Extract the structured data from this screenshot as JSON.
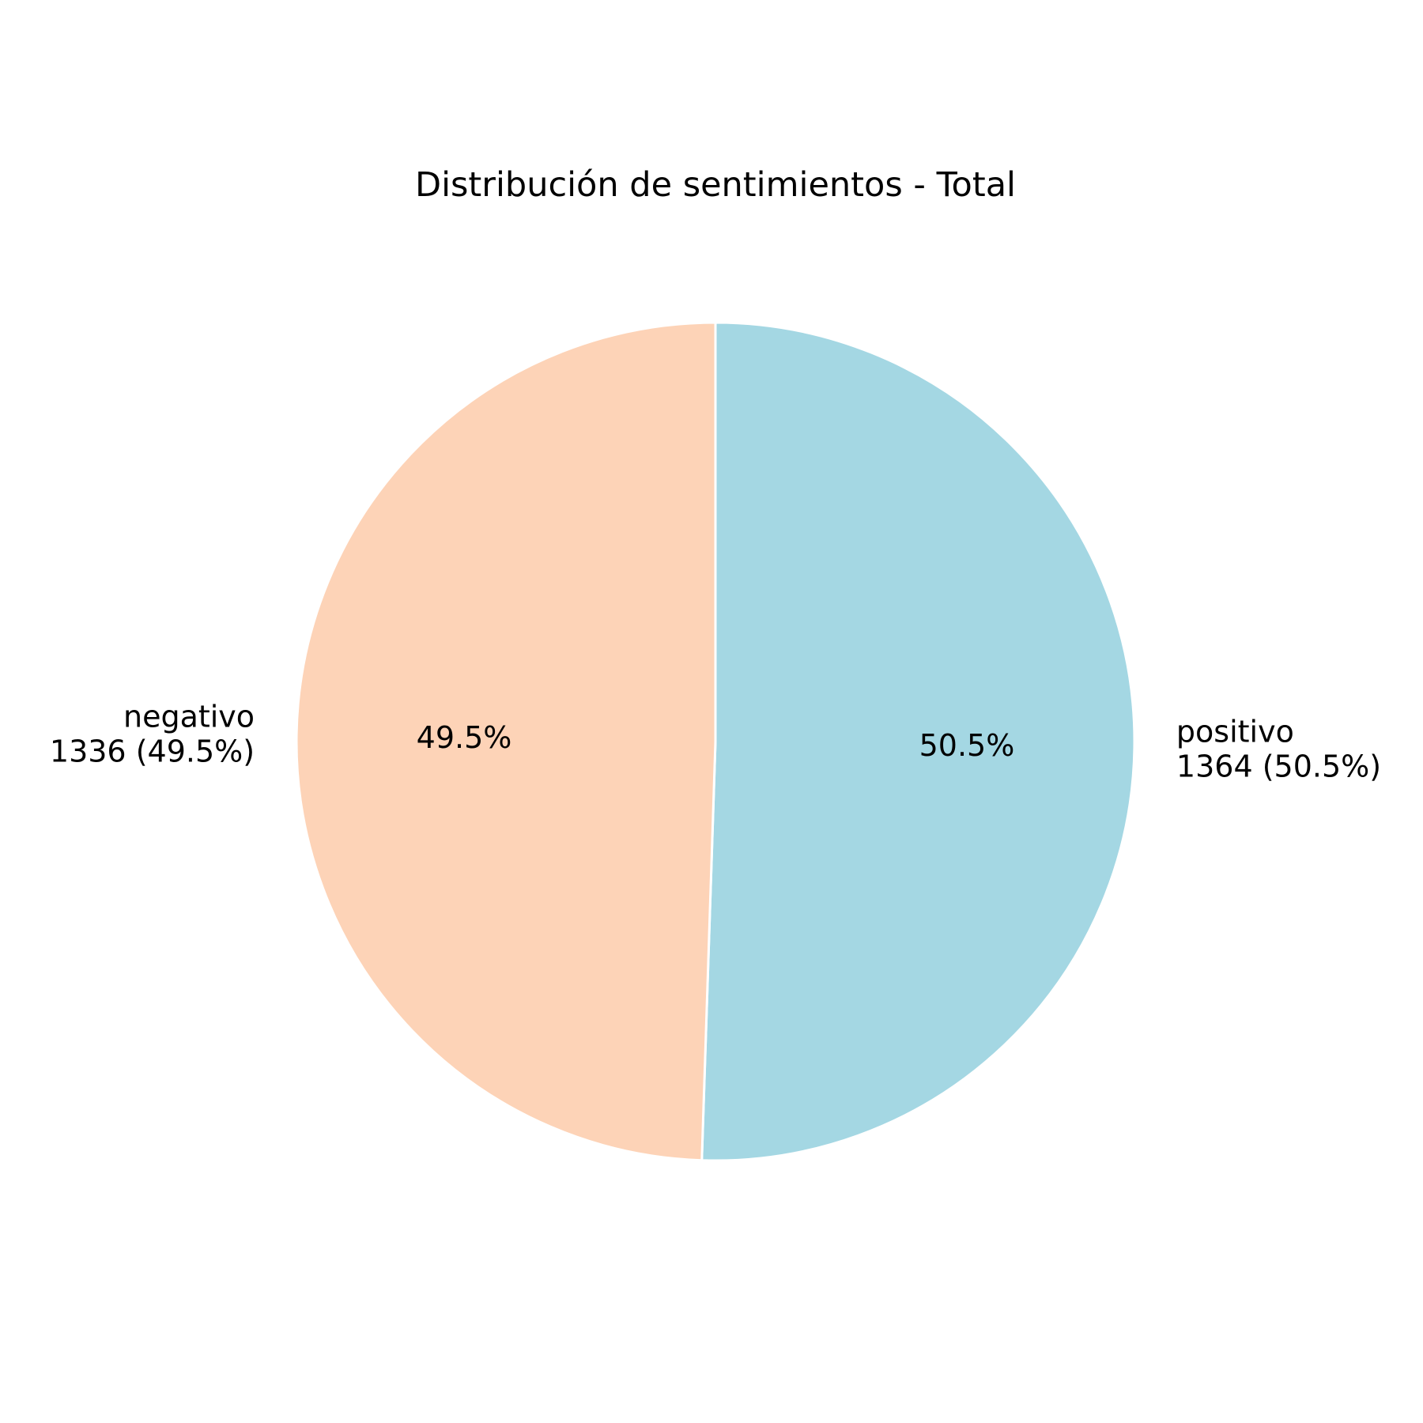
{
  "chart_data": {
    "type": "pie",
    "title": "Distribución de sentimientos - Total",
    "start_angle": "top",
    "direction": "clockwise",
    "slices": [
      {
        "name": "positivo",
        "value": 1364,
        "percent": 50.5,
        "label_count": "1364 (50.5%)",
        "pct_label": "50.5%",
        "color": "#a4d7e3"
      },
      {
        "name": "negativo",
        "value": 1336,
        "percent": 49.5,
        "label_count": "1336 (49.5%)",
        "pct_label": "49.5%",
        "color": "#fdd3b7"
      }
    ],
    "wedge_edge_color": "#ffffff"
  }
}
